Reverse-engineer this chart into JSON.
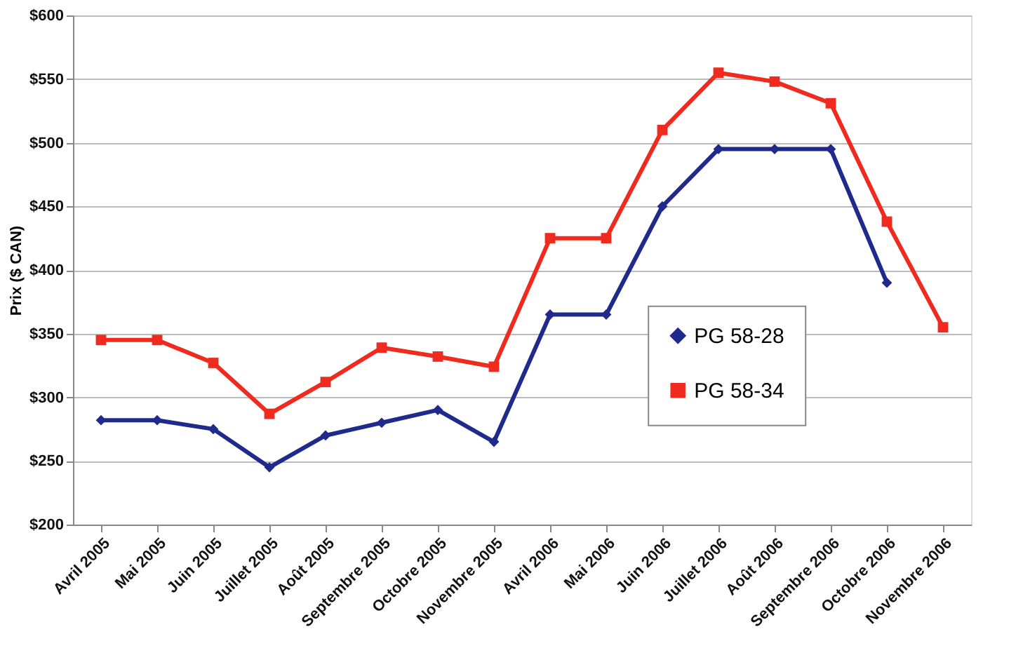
{
  "chart_data": {
    "type": "line",
    "ylabel": "Prix ($ CAN)",
    "categories": [
      "Avril 2005",
      "Mai 2005",
      "Juin 2005",
      "Juillet 2005",
      "Août 2005",
      "Septembre 2005",
      "Octobre 2005",
      "Novembre 2005",
      "Avril 2006",
      "Mai 2006",
      "Juin 2006",
      "Juillet 2006",
      "Août 2006",
      "Septembre 2006",
      "Octobre 2006",
      "Novembre 2006"
    ],
    "series": [
      {
        "name": "PG 58-28",
        "color": "#1f2a8c",
        "marker": "diamond",
        "values": [
          282,
          282,
          275,
          245,
          270,
          280,
          290,
          265,
          365,
          365,
          450,
          495,
          495,
          495,
          390,
          null
        ]
      },
      {
        "name": "PG 58-34",
        "color": "#ee2b1e",
        "marker": "square",
        "values": [
          345,
          345,
          327,
          287,
          312,
          339,
          332,
          324,
          425,
          425,
          510,
          555,
          548,
          531,
          438,
          355
        ]
      }
    ],
    "ylim": [
      200,
      600
    ],
    "yticks": [
      {
        "value": 200,
        "label": "$200"
      },
      {
        "value": 250,
        "label": "$250"
      },
      {
        "value": 300,
        "label": "$300"
      },
      {
        "value": 350,
        "label": "$350"
      },
      {
        "value": 400,
        "label": "$400"
      },
      {
        "value": 450,
        "label": "$450"
      },
      {
        "value": 500,
        "label": "$500"
      },
      {
        "value": 550,
        "label": "$550"
      },
      {
        "value": 600,
        "label": "$600"
      }
    ],
    "grid": "y",
    "legend": "bottom right"
  }
}
